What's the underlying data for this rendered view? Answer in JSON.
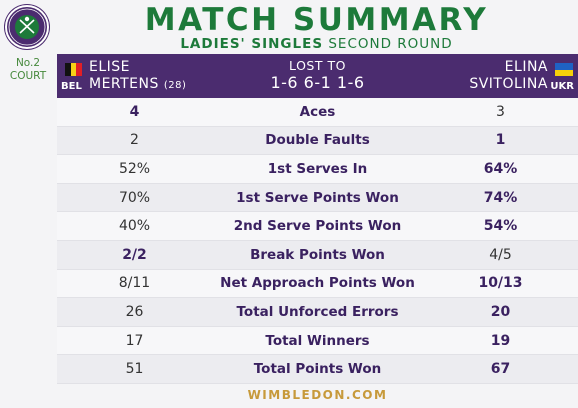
{
  "header": {
    "title": "MATCH SUMMARY",
    "subtitle_bold": "LADIES' SINGLES",
    "subtitle_rest": "SECOND ROUND",
    "court_line1": "No.2",
    "court_line2": "COURT",
    "logo_text": "THE CHAMPIONSHIPS WIMBLEDON"
  },
  "player_left": {
    "first_name": "ELISE",
    "last_name": "MERTENS",
    "seed": "(28)",
    "country": "BEL",
    "flag_colors": [
      "#111111",
      "#f7d117",
      "#e21f26"
    ]
  },
  "player_right": {
    "first_name": "ELINA",
    "last_name": "SVITOLINA",
    "country": "UKR",
    "flag_colors": [
      "#1f62c4",
      "#f5d10a"
    ]
  },
  "result": {
    "status": "LOST TO",
    "score": "1-6 6-1 1-6"
  },
  "stats": [
    {
      "label": "Aces",
      "left": "4",
      "right": "3",
      "winner": "left"
    },
    {
      "label": "Double Faults",
      "left": "2",
      "right": "1",
      "winner": "right"
    },
    {
      "label": "1st Serves In",
      "left": "52%",
      "right": "64%",
      "winner": "right"
    },
    {
      "label": "1st Serve Points Won",
      "left": "70%",
      "right": "74%",
      "winner": "right"
    },
    {
      "label": "2nd Serve Points Won",
      "left": "40%",
      "right": "54%",
      "winner": "right"
    },
    {
      "label": "Break Points Won",
      "left": "2/2",
      "right": "4/5",
      "winner": "left"
    },
    {
      "label": "Net Approach Points Won",
      "left": "8/11",
      "right": "10/13",
      "winner": "right"
    },
    {
      "label": "Total Unforced Errors",
      "left": "26",
      "right": "20",
      "winner": "right"
    },
    {
      "label": "Total Winners",
      "left": "17",
      "right": "19",
      "winner": "right"
    },
    {
      "label": "Total Points Won",
      "left": "51",
      "right": "67",
      "winner": "right"
    }
  ],
  "footer": "WIMBLEDON.COM",
  "colors": {
    "purple": "#4b2c6f",
    "green": "#1d7a3a",
    "gold": "#c79a3b"
  }
}
